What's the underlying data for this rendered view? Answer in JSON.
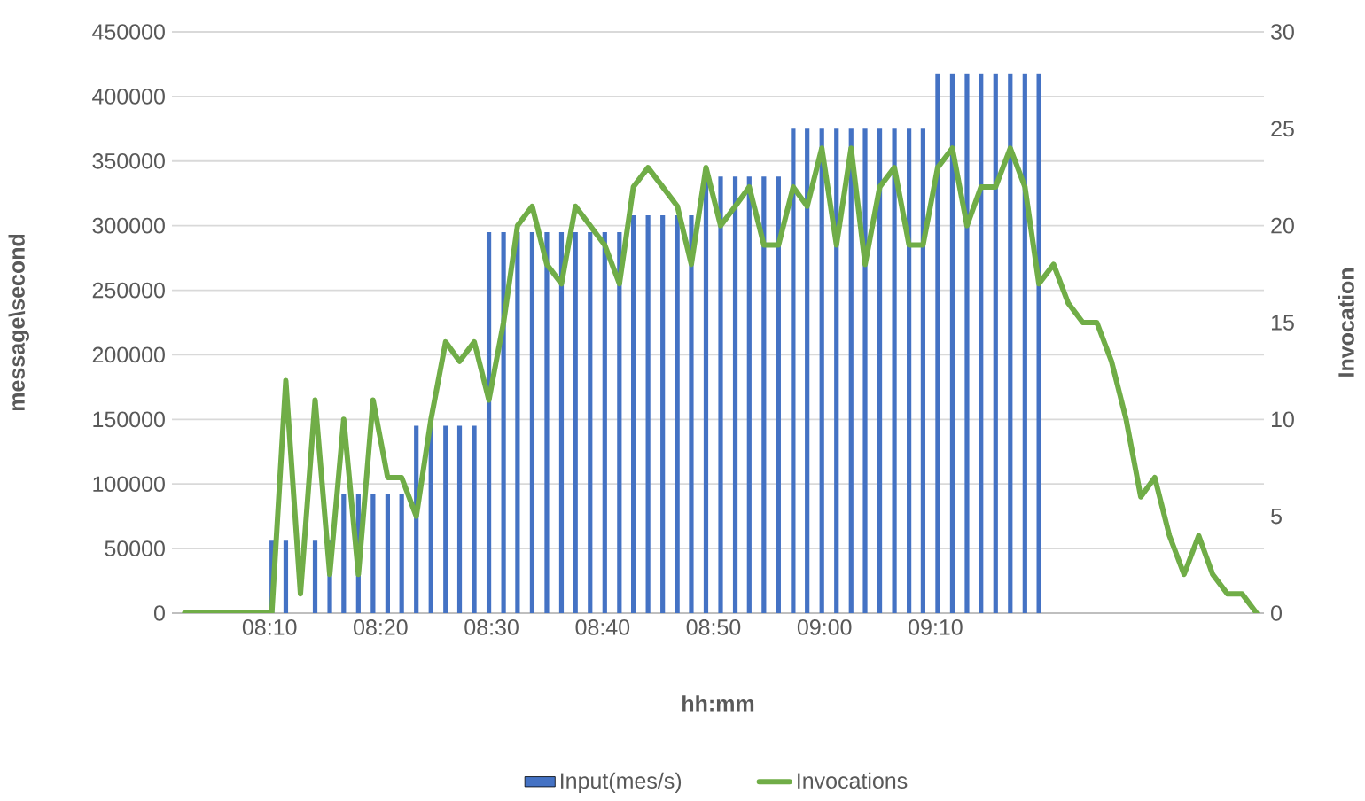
{
  "chart_data": {
    "type": "bar",
    "xlabel": "hh:mm",
    "ylabel": "message\\second",
    "y2label": "Invocation",
    "x": [
      8.039,
      8.061,
      8.083,
      8.104,
      8.126,
      8.148,
      8.17,
      8.191,
      8.213,
      8.235,
      8.257,
      8.278,
      8.3,
      8.322,
      8.344,
      8.365,
      8.387,
      8.409,
      8.431,
      8.452,
      8.474,
      8.496,
      8.518,
      8.539,
      8.561,
      8.583,
      8.605,
      8.626,
      8.648,
      8.67,
      8.692,
      8.713,
      8.735,
      8.757,
      8.779,
      8.8,
      8.822,
      8.844,
      8.866,
      8.887,
      8.909,
      8.931,
      8.953,
      8.974,
      8.996,
      9.018,
      9.04,
      9.061,
      9.083,
      9.105,
      9.127,
      9.148,
      9.17,
      9.192,
      9.214,
      9.235,
      9.257,
      9.279,
      9.301,
      9.322,
      9.344,
      9.366,
      9.388,
      9.409,
      9.431,
      9.453,
      9.475,
      9.496,
      9.518,
      9.54,
      9.562,
      9.583,
      9.605,
      9.627,
      9.649
    ],
    "series": [
      {
        "name": "Input(mes/s)",
        "color": "#4472c4",
        "values": [
          null,
          null,
          null,
          null,
          null,
          null,
          56000,
          56000,
          null,
          56000,
          56000,
          92000,
          92000,
          92000,
          92000,
          92000,
          145000,
          145000,
          145000,
          145000,
          145000,
          295000,
          295000,
          295000,
          295000,
          295000,
          295000,
          295000,
          295000,
          295000,
          295000,
          308000,
          308000,
          308000,
          308000,
          308000,
          338000,
          338000,
          338000,
          338000,
          338000,
          338000,
          375000,
          375000,
          375000,
          375000,
          375000,
          375000,
          375000,
          375000,
          375000,
          375000,
          418000,
          418000,
          418000,
          418000,
          418000,
          418000,
          418000,
          418000,
          null,
          null,
          null,
          null,
          null,
          null,
          null,
          null,
          null,
          null,
          null,
          null,
          null,
          null,
          null
        ]
      },
      {
        "type": "line",
        "axis": "y2",
        "name": "Invocations",
        "color": "#70ad47",
        "values": [
          0,
          0,
          0,
          0,
          0,
          0,
          0,
          12,
          1,
          11,
          2,
          10,
          2,
          11,
          7,
          7,
          5,
          10,
          14,
          13,
          14,
          11,
          15,
          20,
          21,
          18,
          17,
          21,
          20,
          19,
          17,
          22,
          23,
          22,
          21,
          18,
          23,
          20,
          21,
          22,
          19,
          19,
          22,
          21,
          24,
          19,
          24,
          18,
          22,
          23,
          19,
          19,
          23,
          24,
          20,
          22,
          22,
          24,
          22,
          17,
          18,
          16,
          15,
          15,
          13,
          10,
          6,
          7,
          4,
          2,
          4,
          2,
          1,
          1,
          0
        ]
      }
    ],
    "xlim": [
      8.02,
      9.66
    ],
    "xticks": [
      {
        "value": 8.1667,
        "label": "08:10"
      },
      {
        "value": 8.3333,
        "label": "08:20"
      },
      {
        "value": 8.5,
        "label": "08:30"
      },
      {
        "value": 8.6667,
        "label": "08:40"
      },
      {
        "value": 8.8333,
        "label": "08:50"
      },
      {
        "value": 9.0,
        "label": "09:00"
      },
      {
        "value": 9.1667,
        "label": "09:10"
      }
    ],
    "ylim": [
      0,
      450000
    ],
    "yticks": [
      0,
      50000,
      100000,
      150000,
      200000,
      250000,
      300000,
      350000,
      400000,
      450000
    ],
    "y2lim": [
      0,
      30
    ],
    "y2ticks": [
      0,
      5,
      10,
      15,
      20,
      25,
      30
    ],
    "grid": "y",
    "legend": "bottom"
  }
}
